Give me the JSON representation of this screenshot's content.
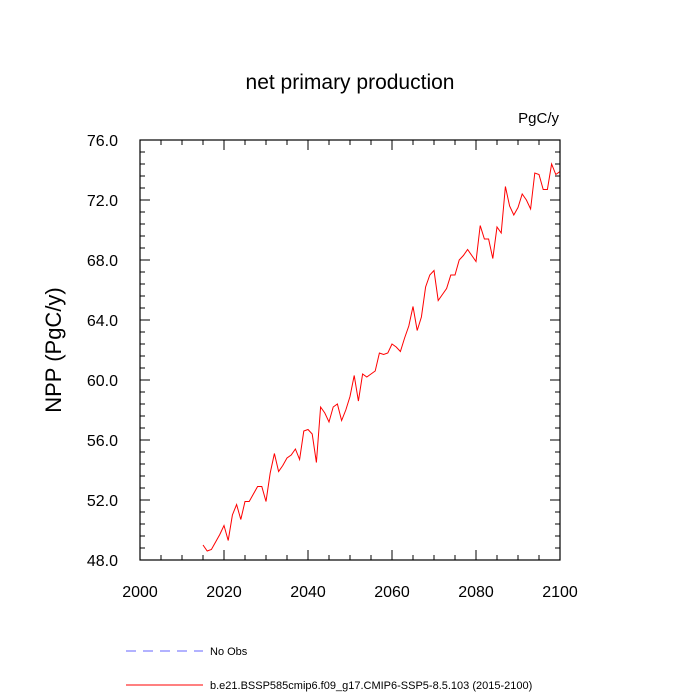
{
  "chart_data": {
    "type": "line",
    "title": "net primary production",
    "units": "PgC/y",
    "ylabel": "NPP  (PgC/y)",
    "xlabel": "",
    "xlim": [
      2000,
      2100
    ],
    "ylim": [
      48.0,
      76.0
    ],
    "x_ticks": [
      2000,
      2020,
      2040,
      2060,
      2080,
      2100
    ],
    "x_tick_labels": [
      "2000",
      "2020",
      "2040",
      "2060",
      "2080",
      "2100"
    ],
    "y_ticks": [
      48,
      52,
      56,
      60,
      64,
      68,
      72,
      76
    ],
    "y_tick_labels": [
      "48.0",
      "52.0",
      "56.0",
      "60.0",
      "64.0",
      "68.0",
      "72.0",
      "76.0"
    ],
    "grid": false,
    "legend_position": "bottom",
    "legend": [
      {
        "label": "No Obs",
        "color": "#6666ff",
        "style": "dashed"
      },
      {
        "label": "b.e21.BSSP585cmip6.f09_g17.CMIP6-SSP5-8.5.103 (2015-2100)",
        "color": "#ff0000",
        "style": "solid"
      }
    ],
    "series": [
      {
        "name": "b.e21.BSSP585cmip6.f09_g17.CMIP6-SSP5-8.5.103 (2015-2100)",
        "color": "#ff0000",
        "x": [
          2015,
          2016,
          2017,
          2018,
          2019,
          2020,
          2021,
          2022,
          2023,
          2024,
          2025,
          2026,
          2027,
          2028,
          2029,
          2030,
          2031,
          2032,
          2033,
          2034,
          2035,
          2036,
          2037,
          2038,
          2039,
          2040,
          2041,
          2042,
          2043,
          2044,
          2045,
          2046,
          2047,
          2048,
          2049,
          2050,
          2051,
          2052,
          2053,
          2054,
          2055,
          2056,
          2057,
          2058,
          2059,
          2060,
          2061,
          2062,
          2063,
          2064,
          2065,
          2066,
          2067,
          2068,
          2069,
          2070,
          2071,
          2072,
          2073,
          2074,
          2075,
          2076,
          2077,
          2078,
          2079,
          2080,
          2081,
          2082,
          2083,
          2084,
          2085,
          2086,
          2087,
          2088,
          2089,
          2090,
          2091,
          2092,
          2093,
          2094,
          2095,
          2096,
          2097,
          2098,
          2099,
          2100
        ],
        "y": [
          49.0,
          48.6,
          48.7,
          49.2,
          49.7,
          50.3,
          49.3,
          51.0,
          51.7,
          50.7,
          51.9,
          51.9,
          52.4,
          52.9,
          52.9,
          51.9,
          53.8,
          55.1,
          53.9,
          54.3,
          54.8,
          55.0,
          55.4,
          54.7,
          56.6,
          56.7,
          56.4,
          54.5,
          58.2,
          57.8,
          57.2,
          58.2,
          58.4,
          57.3,
          58.0,
          58.9,
          60.3,
          58.6,
          60.4,
          60.2,
          60.4,
          60.6,
          61.8,
          61.7,
          61.8,
          62.4,
          62.2,
          61.9,
          62.8,
          63.6,
          64.9,
          63.3,
          64.2,
          66.2,
          67.0,
          67.3,
          65.3,
          65.7,
          66.1,
          67.0,
          67.0,
          68.0,
          68.3,
          68.7,
          68.3,
          67.9,
          70.3,
          69.4,
          69.4,
          68.1,
          70.2,
          69.8,
          72.9,
          71.6,
          71.0,
          71.5,
          72.4,
          72.0,
          71.4,
          73.8,
          73.7,
          72.7,
          72.7,
          74.4,
          73.7,
          73.9
        ]
      }
    ]
  }
}
